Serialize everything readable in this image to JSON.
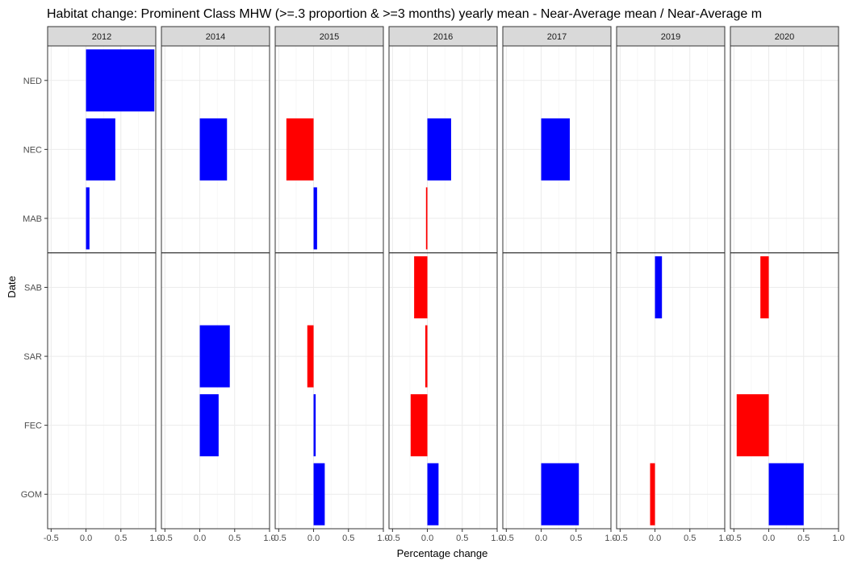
{
  "chart_data": {
    "type": "bar",
    "orientation": "horizontal",
    "title": "Habitat change: Prominent Class MHW (>=.3 proportion & >=3 months) yearly mean - Near-Average mean / Near-Average m",
    "xlabel": "Percentage change",
    "ylabel": "Date",
    "xlim": [
      -0.55,
      1.0
    ],
    "x_ticks": [
      -0.5,
      0.0,
      0.5,
      1.0
    ],
    "x_tick_labels": [
      "-0.5",
      "0.0",
      "0.5",
      "1.0"
    ],
    "panels": [
      "2012",
      "2014",
      "2015",
      "2016",
      "2017",
      "2019",
      "2020"
    ],
    "categories": [
      "NED",
      "NEC",
      "MAB",
      "SAB",
      "SAR",
      "FEC",
      "GOM"
    ],
    "divider_after_category": "MAB",
    "colors": {
      "positive": "#0000FF",
      "negative": "#FF0000"
    },
    "grid": true,
    "values": {
      "2012": {
        "NED": 0.98,
        "NEC": 0.42,
        "MAB": 0.05
      },
      "2014": {
        "NEC": 0.39,
        "SAR": 0.43,
        "FEC": 0.27
      },
      "2015": {
        "NEC": -0.39,
        "MAB": 0.05,
        "SAR": -0.09,
        "FEC": 0.03,
        "GOM": 0.16
      },
      "2016": {
        "NEC": 0.34,
        "MAB": -0.02,
        "SAB": -0.19,
        "SAR": -0.03,
        "FEC": -0.24,
        "GOM": 0.16
      },
      "2017": {
        "NEC": 0.41,
        "GOM": 0.54
      },
      "2019": {
        "SAB": 0.1,
        "GOM": -0.07
      },
      "2020": {
        "SAB": -0.12,
        "FEC": -0.46,
        "GOM": 0.5
      }
    }
  }
}
